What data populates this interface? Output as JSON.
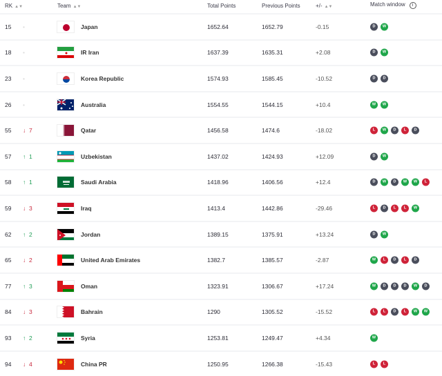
{
  "header": {
    "rk": "RK",
    "team": "Team",
    "total": "Total Points",
    "previous": "Previous Points",
    "diff": "+/-",
    "window": "Match window",
    "info_icon": "i"
  },
  "colors": {
    "W": "#1fa64a",
    "L": "#cf2339",
    "D": "#4a4e5c",
    "up": "#1f9d55",
    "down": "#c8283c"
  },
  "rows": [
    {
      "rk": "15",
      "move": "",
      "dir": "none",
      "team": "Japan",
      "flag": "japan",
      "total": "1652.64",
      "prev": "1652.79",
      "diff": "-0.15",
      "window": [
        "D",
        "W"
      ]
    },
    {
      "rk": "18",
      "move": "",
      "dir": "none",
      "team": "IR Iran",
      "flag": "iran",
      "total": "1637.39",
      "prev": "1635.31",
      "diff": "+2.08",
      "window": [
        "D",
        "W"
      ]
    },
    {
      "rk": "23",
      "move": "",
      "dir": "none",
      "team": "Korea Republic",
      "flag": "korea",
      "total": "1574.93",
      "prev": "1585.45",
      "diff": "-10.52",
      "window": [
        "D",
        "D"
      ]
    },
    {
      "rk": "26",
      "move": "",
      "dir": "none",
      "team": "Australia",
      "flag": "australia",
      "total": "1554.55",
      "prev": "1544.15",
      "diff": "+10.4",
      "window": [
        "W",
        "W"
      ]
    },
    {
      "rk": "55",
      "move": "7",
      "dir": "down",
      "team": "Qatar",
      "flag": "qatar",
      "total": "1456.58",
      "prev": "1474.6",
      "diff": "-18.02",
      "window": [
        "L",
        "W",
        "D",
        "L",
        "D"
      ]
    },
    {
      "rk": "57",
      "move": "1",
      "dir": "up",
      "team": "Uzbekistan",
      "flag": "uzbekistan",
      "total": "1437.02",
      "prev": "1424.93",
      "diff": "+12.09",
      "window": [
        "D",
        "W"
      ]
    },
    {
      "rk": "58",
      "move": "1",
      "dir": "up",
      "team": "Saudi Arabia",
      "flag": "saudi",
      "total": "1418.96",
      "prev": "1406.56",
      "diff": "+12.4",
      "window": [
        "D",
        "W",
        "D",
        "W",
        "W",
        "L"
      ]
    },
    {
      "rk": "59",
      "move": "3",
      "dir": "down",
      "team": "Iraq",
      "flag": "iraq",
      "total": "1413.4",
      "prev": "1442.86",
      "diff": "-29.46",
      "window": [
        "L",
        "D",
        "L",
        "L",
        "W"
      ]
    },
    {
      "rk": "62",
      "move": "2",
      "dir": "up",
      "team": "Jordan",
      "flag": "jordan",
      "total": "1389.15",
      "prev": "1375.91",
      "diff": "+13.24",
      "window": [
        "D",
        "W"
      ]
    },
    {
      "rk": "65",
      "move": "2",
      "dir": "down",
      "team": "United Arab Emirates",
      "flag": "uae",
      "total": "1382.7",
      "prev": "1385.57",
      "diff": "-2.87",
      "window": [
        "W",
        "L",
        "D",
        "L",
        "D"
      ]
    },
    {
      "rk": "77",
      "move": "3",
      "dir": "up",
      "team": "Oman",
      "flag": "oman",
      "total": "1323.91",
      "prev": "1306.67",
      "diff": "+17.24",
      "window": [
        "W",
        "D",
        "D",
        "D",
        "W",
        "D"
      ]
    },
    {
      "rk": "84",
      "move": "3",
      "dir": "down",
      "team": "Bahrain",
      "flag": "bahrain",
      "total": "1290",
      "prev": "1305.52",
      "diff": "-15.52",
      "window": [
        "L",
        "L",
        "D",
        "L",
        "W",
        "W"
      ]
    },
    {
      "rk": "93",
      "move": "2",
      "dir": "up",
      "team": "Syria",
      "flag": "syria",
      "total": "1253.81",
      "prev": "1249.47",
      "diff": "+4.34",
      "window": [
        "W"
      ]
    },
    {
      "rk": "94",
      "move": "4",
      "dir": "down",
      "team": "China PR",
      "flag": "china",
      "total": "1250.95",
      "prev": "1266.38",
      "diff": "-15.43",
      "window": [
        "L",
        "L"
      ]
    }
  ]
}
